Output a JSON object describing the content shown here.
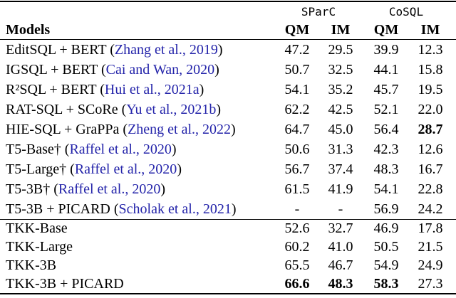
{
  "table": {
    "group_header": {
      "sparc": "SParC",
      "cosql": "CoSQL"
    },
    "header": {
      "models": "Models",
      "sparc_qm": "QM",
      "sparc_im": "IM",
      "cosql_qm": "QM",
      "cosql_im": "IM"
    },
    "colors": {
      "citation_blue": "#2424aa",
      "text": "#000000",
      "background": "#ffffff"
    },
    "rows": [
      {
        "name": "EditSQL + BERT",
        "cite_open": " (",
        "cite": "Zhang et al., 2019",
        "cite_close": ")",
        "v1": "47.2",
        "v2": "29.5",
        "v3": "39.9",
        "v4": "12.3"
      },
      {
        "name": "IGSQL + BERT",
        "cite_open": " (",
        "cite": "Cai and Wan, 2020",
        "cite_close": ")",
        "v1": "50.7",
        "v2": "32.5",
        "v3": "44.1",
        "v4": "15.8"
      },
      {
        "name": "R²SQL + BERT",
        "cite_open": " (",
        "cite": "Hui et al., 2021a",
        "cite_close": ")",
        "v1": "54.1",
        "v2": "35.2",
        "v3": "45.7",
        "v4": "19.5"
      },
      {
        "name": "RAT-SQL + SCoRe",
        "cite_open": " (",
        "cite": "Yu et al., 2021b",
        "cite_close": ")",
        "v1": "62.2",
        "v2": "42.5",
        "v3": "52.1",
        "v4": "22.0"
      },
      {
        "name": "HIE-SQL + GraPPa",
        "cite_open": " (",
        "cite": "Zheng et al., 2022",
        "cite_close": ")",
        "v1": "64.7",
        "v2": "45.0",
        "v3": "56.4",
        "v4": "28.7"
      },
      {
        "name": "T5-Base†",
        "cite_open": " (",
        "cite": "Raffel et al., 2020",
        "cite_close": ")",
        "v1": "50.6",
        "v2": "31.3",
        "v3": "42.3",
        "v4": "12.6"
      },
      {
        "name": "T5-Large†",
        "cite_open": " (",
        "cite": "Raffel et al., 2020",
        "cite_close": ")",
        "v1": "56.7",
        "v2": "37.4",
        "v3": "48.3",
        "v4": "16.7"
      },
      {
        "name": "T5-3B†",
        "cite_open": " (",
        "cite": "Raffel et al., 2020",
        "cite_close": ")",
        "v1": "61.5",
        "v2": "41.9",
        "v3": "54.1",
        "v4": "22.8"
      },
      {
        "name": "T5-3B + PICARD",
        "cite_open": " (",
        "cite": "Scholak et al., 2021",
        "cite_close": ")",
        "v1": "-",
        "v2": "-",
        "v3": "56.9",
        "v4": "24.2"
      },
      {
        "name": "TKK-Base",
        "cite_open": "",
        "cite": "",
        "cite_close": "",
        "v1": "52.6",
        "v2": "32.7",
        "v3": "46.9",
        "v4": "17.8"
      },
      {
        "name": "TKK-Large",
        "cite_open": "",
        "cite": "",
        "cite_close": "",
        "v1": "60.2",
        "v2": "41.0",
        "v3": "50.5",
        "v4": "21.5"
      },
      {
        "name": "TKK-3B",
        "cite_open": "",
        "cite": "",
        "cite_close": "",
        "v1": "65.5",
        "v2": "46.7",
        "v3": "54.9",
        "v4": "24.9"
      },
      {
        "name": "TKK-3B + PICARD",
        "cite_open": "",
        "cite": "",
        "cite_close": "",
        "v1": "66.6",
        "v2": "48.3",
        "v3": "58.3",
        "v4": "27.3"
      }
    ]
  }
}
